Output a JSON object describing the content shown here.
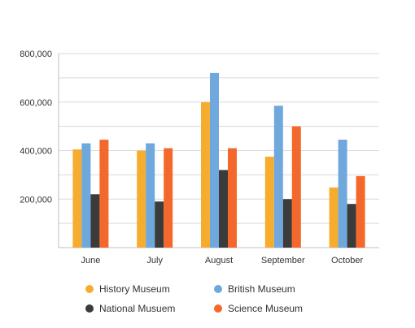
{
  "chart_data": {
    "type": "bar",
    "title": "",
    "xlabel": "",
    "ylabel": "",
    "categories": [
      "June",
      "July",
      "August",
      "September",
      "October"
    ],
    "series": [
      {
        "name": "History Museum",
        "color": "#f6ad2f",
        "values": [
          405000,
          400000,
          600000,
          375000,
          248000
        ]
      },
      {
        "name": "British Museum",
        "color": "#6fa8dc",
        "values": [
          430000,
          430000,
          720000,
          585000,
          445000
        ]
      },
      {
        "name": "National Musuem",
        "color": "#3b3b3b",
        "values": [
          220000,
          190000,
          320000,
          200000,
          180000
        ]
      },
      {
        "name": "Science Museum",
        "color": "#f4692b",
        "values": [
          445000,
          410000,
          410000,
          500000,
          295000
        ]
      }
    ],
    "ylim": [
      0,
      800000
    ],
    "yticks": [
      200000,
      400000,
      600000,
      800000
    ],
    "ytick_labels": [
      "200,000",
      "400,000",
      "600,000",
      "800,000"
    ],
    "grid": true,
    "legend_position": "bottom"
  }
}
